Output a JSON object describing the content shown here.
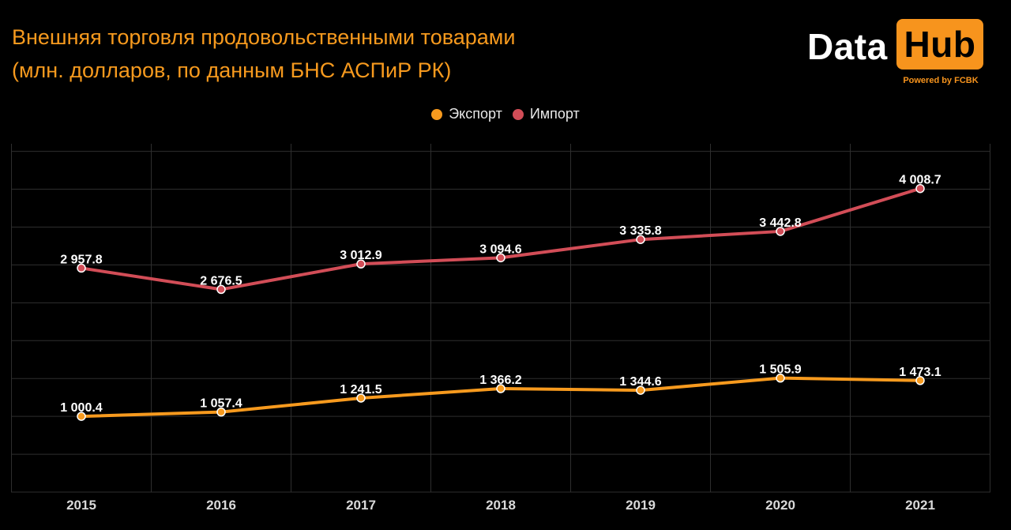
{
  "title": {
    "line1": "Внешняя торговля продовольственными товарами",
    "line2": "(млн. долларов, по данным БНС АСПиР РК)"
  },
  "logo": {
    "word1": "Data",
    "word2": "Hub",
    "tagline": "Powered by FCBK"
  },
  "colors": {
    "title": "#f79a1e",
    "export": "#f79a1e",
    "import": "#d24d57",
    "grid": "#2e2e2e",
    "background": "#000000"
  },
  "chart_data": {
    "type": "line",
    "title": "Внешняя торговля продовольственными товарами (млн. долларов, по данным БНС АСПиР РК)",
    "xlabel": "",
    "ylabel": "",
    "x": [
      "2015",
      "2016",
      "2017",
      "2018",
      "2019",
      "2020",
      "2021"
    ],
    "ylim": [
      0,
      4600
    ],
    "grid": true,
    "legend_position": "top-center",
    "series": [
      {
        "name": "Экспорт",
        "color": "#f79a1e",
        "values": [
          1000.4,
          1057.4,
          1241.5,
          1366.2,
          1344.6,
          1505.9,
          1473.1
        ],
        "labels": [
          "1 000.4",
          "1 057.4",
          "1 241.5",
          "1 366.2",
          "1 344.6",
          "1 505.9",
          "1 473.1"
        ]
      },
      {
        "name": "Импорт",
        "color": "#d24d57",
        "values": [
          2957.8,
          2676.5,
          3012.9,
          3094.6,
          3335.8,
          3442.8,
          4008.7
        ],
        "labels": [
          "2 957.8",
          "2 676.5",
          "3 012.9",
          "3 094.6",
          "3 335.8",
          "3 442.8",
          "4 008.7"
        ]
      }
    ]
  }
}
